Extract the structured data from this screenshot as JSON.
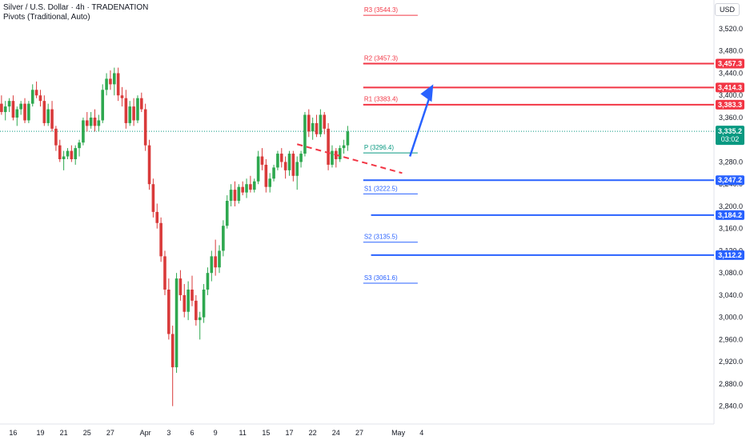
{
  "header": {
    "symbol_line": "Silver / U.S. Dollar · 4h · TRADENATION",
    "indicator_line": "Pivots (Traditional, Auto)"
  },
  "currency": "USD",
  "colors": {
    "up": "#26a69a",
    "down": "#ef5350",
    "bull_body": "#2ea84f",
    "bear_body": "#d93a3a",
    "resistance": "#f23645",
    "support": "#2962ff",
    "pivot": "#089981",
    "arrow": "#2962ff",
    "last_price_bg": "#089981"
  },
  "chart_data": {
    "type": "candlestick",
    "timeframe": "4h",
    "title": "Silver / U.S. Dollar · 4h · TRADENATION",
    "y_axis": {
      "min": 2820,
      "max": 3540,
      "ticks": [
        2840,
        2880,
        2920,
        2960,
        3000,
        3040,
        3080,
        3120,
        3160,
        3200,
        3240,
        3280,
        3320,
        3360,
        3400,
        3440,
        3480,
        3520
      ]
    },
    "x_labels": [
      {
        "label": "16",
        "bar": 4
      },
      {
        "label": "19",
        "bar": 11
      },
      {
        "label": "21",
        "bar": 17
      },
      {
        "label": "25",
        "bar": 23
      },
      {
        "label": "27",
        "bar": 29
      },
      {
        "label": "Apr",
        "bar": 38
      },
      {
        "label": "3",
        "bar": 44
      },
      {
        "label": "6",
        "bar": 50
      },
      {
        "label": "9",
        "bar": 56
      },
      {
        "label": "11",
        "bar": 63
      },
      {
        "label": "15",
        "bar": 69
      },
      {
        "label": "17",
        "bar": 75
      },
      {
        "label": "22",
        "bar": 81
      },
      {
        "label": "24",
        "bar": 87
      },
      {
        "label": "27",
        "bar": 93
      },
      {
        "label": "May",
        "bar": 103
      },
      {
        "label": "4",
        "bar": 109
      }
    ],
    "candles": [
      [
        3360,
        3395,
        3350,
        3385
      ],
      [
        3385,
        3400,
        3365,
        3370
      ],
      [
        3370,
        3390,
        3355,
        3380
      ],
      [
        3380,
        3395,
        3370,
        3390
      ],
      [
        3390,
        3400,
        3355,
        3360
      ],
      [
        3360,
        3380,
        3345,
        3375
      ],
      [
        3375,
        3390,
        3365,
        3385
      ],
      [
        3385,
        3395,
        3350,
        3355
      ],
      [
        3355,
        3390,
        3350,
        3385
      ],
      [
        3385,
        3420,
        3380,
        3410
      ],
      [
        3410,
        3425,
        3395,
        3400
      ],
      [
        3400,
        3410,
        3380,
        3390
      ],
      [
        3390,
        3400,
        3345,
        3350
      ],
      [
        3350,
        3385,
        3345,
        3375
      ],
      [
        3375,
        3390,
        3335,
        3340
      ],
      [
        3340,
        3345,
        3300,
        3310
      ],
      [
        3310,
        3320,
        3280,
        3285
      ],
      [
        3285,
        3300,
        3265,
        3290
      ],
      [
        3290,
        3305,
        3285,
        3300
      ],
      [
        3300,
        3310,
        3280,
        3285
      ],
      [
        3285,
        3310,
        3275,
        3305
      ],
      [
        3305,
        3320,
        3290,
        3315
      ],
      [
        3315,
        3360,
        3310,
        3355
      ],
      [
        3355,
        3370,
        3335,
        3345
      ],
      [
        3345,
        3370,
        3340,
        3360
      ],
      [
        3360,
        3375,
        3335,
        3345
      ],
      [
        3345,
        3365,
        3335,
        3355
      ],
      [
        3355,
        3420,
        3350,
        3410
      ],
      [
        3410,
        3440,
        3400,
        3430
      ],
      [
        3430,
        3445,
        3410,
        3420
      ],
      [
        3420,
        3450,
        3400,
        3440
      ],
      [
        3440,
        3450,
        3390,
        3400
      ],
      [
        3400,
        3415,
        3380,
        3395
      ],
      [
        3395,
        3410,
        3340,
        3350
      ],
      [
        3350,
        3390,
        3345,
        3380
      ],
      [
        3380,
        3395,
        3345,
        3355
      ],
      [
        3355,
        3400,
        3350,
        3395
      ],
      [
        3395,
        3405,
        3370,
        3375
      ],
      [
        3375,
        3385,
        3300,
        3310
      ],
      [
        3310,
        3320,
        3230,
        3240
      ],
      [
        3240,
        3250,
        3180,
        3190
      ],
      [
        3190,
        3205,
        3160,
        3170
      ],
      [
        3170,
        3180,
        3100,
        3110
      ],
      [
        3110,
        3120,
        3040,
        3050
      ],
      [
        3050,
        3070,
        2960,
        2970
      ],
      [
        2970,
        2985,
        2840,
        2910
      ],
      [
        2910,
        3080,
        2900,
        3070
      ],
      [
        3070,
        3085,
        3030,
        3040
      ],
      [
        3040,
        3060,
        3000,
        3010
      ],
      [
        3010,
        3065,
        2995,
        3050
      ],
      [
        3050,
        3075,
        3020,
        3030
      ],
      [
        3030,
        3040,
        2985,
        2995
      ],
      [
        2995,
        3010,
        2960,
        3000
      ],
      [
        3000,
        3060,
        2990,
        3050
      ],
      [
        3050,
        3090,
        3040,
        3080
      ],
      [
        3080,
        3120,
        3065,
        3110
      ],
      [
        3110,
        3140,
        3075,
        3090
      ],
      [
        3090,
        3130,
        3080,
        3120
      ],
      [
        3120,
        3175,
        3110,
        3165
      ],
      [
        3165,
        3220,
        3160,
        3210
      ],
      [
        3210,
        3240,
        3200,
        3230
      ],
      [
        3230,
        3245,
        3200,
        3210
      ],
      [
        3210,
        3240,
        3205,
        3235
      ],
      [
        3235,
        3245,
        3220,
        3225
      ],
      [
        3225,
        3250,
        3215,
        3240
      ],
      [
        3240,
        3255,
        3225,
        3230
      ],
      [
        3230,
        3250,
        3225,
        3245
      ],
      [
        3245,
        3300,
        3240,
        3290
      ],
      [
        3290,
        3305,
        3265,
        3275
      ],
      [
        3275,
        3285,
        3225,
        3235
      ],
      [
        3235,
        3260,
        3225,
        3250
      ],
      [
        3250,
        3275,
        3245,
        3270
      ],
      [
        3270,
        3300,
        3265,
        3295
      ],
      [
        3295,
        3305,
        3270,
        3280
      ],
      [
        3280,
        3290,
        3250,
        3265
      ],
      [
        3265,
        3300,
        3255,
        3295
      ],
      [
        3295,
        3300,
        3245,
        3255
      ],
      [
        3255,
        3290,
        3230,
        3280
      ],
      [
        3280,
        3300,
        3270,
        3295
      ],
      [
        3295,
        3370,
        3290,
        3365
      ],
      [
        3365,
        3375,
        3325,
        3335
      ],
      [
        3335,
        3360,
        3320,
        3350
      ],
      [
        3350,
        3365,
        3325,
        3330
      ],
      [
        3330,
        3375,
        3325,
        3365
      ],
      [
        3365,
        3370,
        3330,
        3340
      ],
      [
        3340,
        3350,
        3265,
        3275
      ],
      [
        3275,
        3310,
        3270,
        3300
      ],
      [
        3300,
        3305,
        3270,
        3285
      ],
      [
        3285,
        3310,
        3280,
        3305
      ],
      [
        3305,
        3320,
        3295,
        3310
      ],
      [
        3310,
        3345,
        3300,
        3335
      ]
    ],
    "pivot_levels": [
      {
        "name": "R3",
        "text": "R3 (3544.3)",
        "value": 3544.3,
        "side": "resistance"
      },
      {
        "name": "R2",
        "text": "R2 (3457.3)",
        "value": 3457.3,
        "side": "resistance"
      },
      {
        "name": "R1",
        "text": "R1 (3383.4)",
        "value": 3383.4,
        "side": "resistance"
      },
      {
        "name": "P",
        "text": "P (3296.4)",
        "value": 3296.4,
        "side": "pivot"
      },
      {
        "name": "S1",
        "text": "S1 (3222.5)",
        "value": 3222.5,
        "side": "support"
      },
      {
        "name": "S2",
        "text": "S2 (3135.5)",
        "value": 3135.5,
        "side": "support"
      },
      {
        "name": "S3",
        "text": "S3 (3061.6)",
        "value": 3061.6,
        "side": "support"
      }
    ],
    "key_levels": [
      {
        "label": "3,457.3",
        "value": 3457.3,
        "side": "resistance",
        "start_bar": 94
      },
      {
        "label": "3,414.3",
        "value": 3414.3,
        "side": "resistance",
        "start_bar": 94
      },
      {
        "label": "3,383.3",
        "value": 3383.3,
        "side": "resistance",
        "start_bar": 94
      },
      {
        "label": "3,247.2",
        "value": 3247.2,
        "side": "support",
        "start_bar": 94
      },
      {
        "label": "3,184.2",
        "value": 3184.2,
        "side": "support",
        "start_bar": 96
      },
      {
        "label": "3,112.2",
        "value": 3112.2,
        "side": "support",
        "start_bar": 96
      }
    ],
    "trendline": {
      "from": [
        77,
        3312
      ],
      "to": [
        104,
        3260
      ],
      "style": "dashed",
      "color": "resistance"
    },
    "arrow": {
      "from": [
        106,
        3290
      ],
      "to": [
        112,
        3420
      ]
    },
    "last_price": {
      "label": "3,335.2",
      "countdown": "03:02",
      "value": 3335.2
    }
  }
}
